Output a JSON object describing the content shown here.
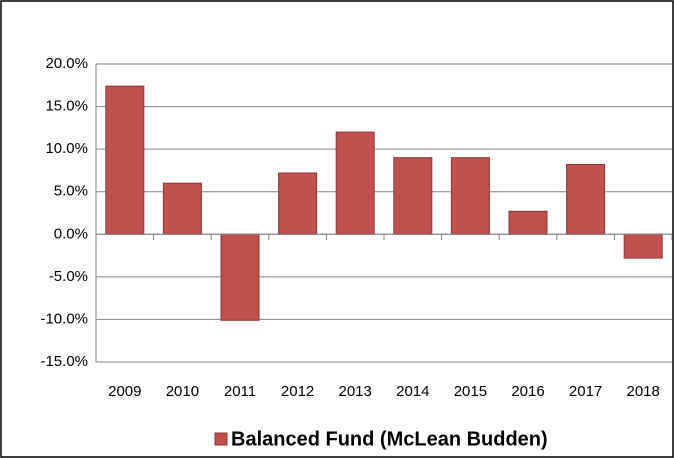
{
  "chart_data": {
    "type": "bar",
    "categories": [
      "2009",
      "2010",
      "2011",
      "2012",
      "2013",
      "2014",
      "2015",
      "2016",
      "2017",
      "2018"
    ],
    "series": [
      {
        "name": "Balanced Fund (McLean Budden)",
        "color": "#c0504d",
        "values": [
          17.4,
          6.0,
          -10.1,
          7.2,
          12.0,
          9.0,
          9.0,
          2.7,
          8.2,
          -2.8
        ]
      }
    ],
    "ylim": [
      -15,
      20
    ],
    "yticks": [
      {
        "value": -15,
        "label": "-15.0%"
      },
      {
        "value": -10,
        "label": "-10.0%"
      },
      {
        "value": -5,
        "label": "-5.0%"
      },
      {
        "value": 0,
        "label": "0.0%"
      },
      {
        "value": 5,
        "label": "5.0%"
      },
      {
        "value": 10,
        "label": "10.0%"
      },
      {
        "value": 15,
        "label": "15.0%"
      },
      {
        "value": 20,
        "label": "20.0%"
      }
    ],
    "grid": true,
    "legend": "bottom"
  }
}
